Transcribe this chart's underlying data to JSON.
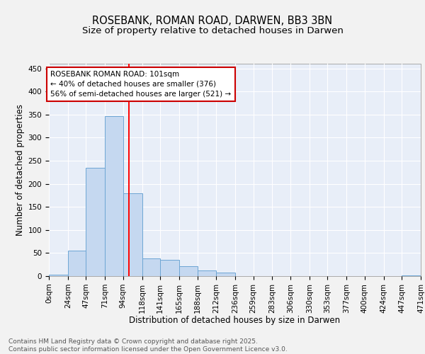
{
  "title_line1": "ROSEBANK, ROMAN ROAD, DARWEN, BB3 3BN",
  "title_line2": "Size of property relative to detached houses in Darwen",
  "xlabel": "Distribution of detached houses by size in Darwen",
  "ylabel": "Number of detached properties",
  "bar_color": "#c5d8f0",
  "bar_edge_color": "#6ea6d4",
  "background_color": "#e8eef8",
  "grid_color": "#ffffff",
  "bin_edges": [
    0,
    24,
    47,
    71,
    94,
    118,
    141,
    165,
    188,
    212,
    236,
    259,
    283,
    306,
    330,
    353,
    377,
    400,
    424,
    447,
    471
  ],
  "bin_labels": [
    "0sqm",
    "24sqm",
    "47sqm",
    "71sqm",
    "94sqm",
    "118sqm",
    "141sqm",
    "165sqm",
    "188sqm",
    "212sqm",
    "236sqm",
    "259sqm",
    "283sqm",
    "306sqm",
    "330sqm",
    "353sqm",
    "377sqm",
    "400sqm",
    "424sqm",
    "447sqm",
    "471sqm"
  ],
  "bar_heights": [
    3,
    55,
    235,
    346,
    180,
    38,
    35,
    22,
    13,
    7,
    0,
    0,
    0,
    0,
    0,
    0,
    0,
    0,
    0,
    2
  ],
  "red_line_x": 101,
  "ylim": [
    0,
    460
  ],
  "yticks": [
    0,
    50,
    100,
    150,
    200,
    250,
    300,
    350,
    400,
    450
  ],
  "annotation_text": "ROSEBANK ROMAN ROAD: 101sqm\n← 40% of detached houses are smaller (376)\n56% of semi-detached houses are larger (521) →",
  "annotation_box_color": "#ffffff",
  "annotation_border_color": "#cc0000",
  "footer_text": "Contains HM Land Registry data © Crown copyright and database right 2025.\nContains public sector information licensed under the Open Government Licence v3.0.",
  "title_fontsize": 10.5,
  "subtitle_fontsize": 9.5,
  "axis_label_fontsize": 8.5,
  "tick_fontsize": 7.5,
  "annotation_fontsize": 7.5,
  "footer_fontsize": 6.5,
  "fig_bg": "#f2f2f2"
}
